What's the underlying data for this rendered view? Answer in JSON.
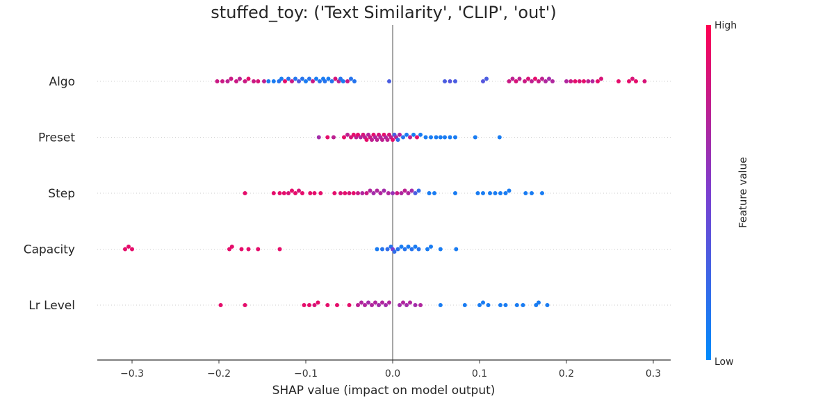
{
  "chart_data": {
    "type": "scatter",
    "title": "stuffed_toy: ('Text Similarity', 'CLIP', 'out')",
    "xlabel": "SHAP value (impact on model output)",
    "xlim": [
      -0.34,
      0.32
    ],
    "xticks": [
      -0.3,
      -0.2,
      -0.1,
      0.0,
      0.1,
      0.2,
      0.3
    ],
    "xtick_labels": [
      "−0.3",
      "−0.2",
      "−0.1",
      "0.0",
      "0.1",
      "0.2",
      "0.3"
    ],
    "zero_line": 0.0,
    "colorbar": {
      "title": "Feature value",
      "high_label": "High",
      "low_label": "Low",
      "low_color": "#008bfb",
      "mid_color": "#7b3fd0",
      "high_color": "#ff0052"
    },
    "features": [
      {
        "name": "Algo",
        "points": [
          {
            "shap": -0.202,
            "v": 0.8
          },
          {
            "shap": -0.196,
            "v": 0.8
          },
          {
            "shap": -0.19,
            "v": 0.75
          },
          {
            "shap": -0.186,
            "v": 0.8
          },
          {
            "shap": -0.18,
            "v": 0.8
          },
          {
            "shap": -0.176,
            "v": 0.75
          },
          {
            "shap": -0.17,
            "v": 0.8
          },
          {
            "shap": -0.166,
            "v": 0.9
          },
          {
            "shap": -0.16,
            "v": 0.8
          },
          {
            "shap": -0.155,
            "v": 0.85
          },
          {
            "shap": -0.148,
            "v": 0.75
          },
          {
            "shap": -0.143,
            "v": 0.1
          },
          {
            "shap": -0.137,
            "v": 0.1
          },
          {
            "shap": -0.131,
            "v": 0.15
          },
          {
            "shap": -0.128,
            "v": 0.1
          },
          {
            "shap": -0.124,
            "v": 0.9
          },
          {
            "shap": -0.12,
            "v": 0.15
          },
          {
            "shap": -0.116,
            "v": 0.8
          },
          {
            "shap": -0.112,
            "v": 0.15
          },
          {
            "shap": -0.108,
            "v": 0.3
          },
          {
            "shap": -0.104,
            "v": 0.15
          },
          {
            "shap": -0.1,
            "v": 0.1
          },
          {
            "shap": -0.096,
            "v": 0.15
          },
          {
            "shap": -0.092,
            "v": 0.8
          },
          {
            "shap": -0.088,
            "v": 0.1
          },
          {
            "shap": -0.084,
            "v": 0.15
          },
          {
            "shap": -0.08,
            "v": 0.1
          },
          {
            "shap": -0.078,
            "v": 0.15
          },
          {
            "shap": -0.074,
            "v": 0.1
          },
          {
            "shap": -0.07,
            "v": 0.15
          },
          {
            "shap": -0.066,
            "v": 0.85
          },
          {
            "shap": -0.062,
            "v": 0.75
          },
          {
            "shap": -0.06,
            "v": 0.15
          },
          {
            "shap": -0.057,
            "v": 0.1
          },
          {
            "shap": -0.052,
            "v": 0.8
          },
          {
            "shap": -0.048,
            "v": 0.15
          },
          {
            "shap": -0.044,
            "v": 0.15
          },
          {
            "shap": -0.004,
            "v": 0.3
          },
          {
            "shap": 0.06,
            "v": 0.3
          },
          {
            "shap": 0.066,
            "v": 0.35
          },
          {
            "shap": 0.072,
            "v": 0.3
          },
          {
            "shap": 0.104,
            "v": 0.35
          },
          {
            "shap": 0.108,
            "v": 0.3
          },
          {
            "shap": 0.134,
            "v": 0.8
          },
          {
            "shap": 0.138,
            "v": 0.75
          },
          {
            "shap": 0.142,
            "v": 0.85
          },
          {
            "shap": 0.146,
            "v": 0.75
          },
          {
            "shap": 0.152,
            "v": 0.8
          },
          {
            "shap": 0.156,
            "v": 0.85
          },
          {
            "shap": 0.16,
            "v": 0.75
          },
          {
            "shap": 0.164,
            "v": 0.9
          },
          {
            "shap": 0.168,
            "v": 0.8
          },
          {
            "shap": 0.172,
            "v": 0.75
          },
          {
            "shap": 0.176,
            "v": 0.7
          },
          {
            "shap": 0.18,
            "v": 0.65
          },
          {
            "shap": 0.184,
            "v": 0.7
          },
          {
            "shap": 0.2,
            "v": 0.7
          },
          {
            "shap": 0.205,
            "v": 0.8
          },
          {
            "shap": 0.21,
            "v": 0.9
          },
          {
            "shap": 0.215,
            "v": 0.85
          },
          {
            "shap": 0.22,
            "v": 0.9
          },
          {
            "shap": 0.225,
            "v": 0.75
          },
          {
            "shap": 0.23,
            "v": 0.7
          },
          {
            "shap": 0.236,
            "v": 0.9
          },
          {
            "shap": 0.24,
            "v": 0.85
          },
          {
            "shap": 0.26,
            "v": 0.9
          },
          {
            "shap": 0.272,
            "v": 0.9
          },
          {
            "shap": 0.276,
            "v": 0.85
          },
          {
            "shap": 0.28,
            "v": 0.9
          },
          {
            "shap": 0.29,
            "v": 0.85
          }
        ]
      },
      {
        "name": "Preset",
        "points": [
          {
            "shap": -0.085,
            "v": 0.65
          },
          {
            "shap": -0.075,
            "v": 0.9
          },
          {
            "shap": -0.068,
            "v": 0.75
          },
          {
            "shap": -0.056,
            "v": 0.9
          },
          {
            "shap": -0.052,
            "v": 0.75
          },
          {
            "shap": -0.048,
            "v": 0.85
          },
          {
            "shap": -0.045,
            "v": 0.9
          },
          {
            "shap": -0.042,
            "v": 0.75
          },
          {
            "shap": -0.04,
            "v": 0.9
          },
          {
            "shap": -0.037,
            "v": 0.7
          },
          {
            "shap": -0.034,
            "v": 0.85
          },
          {
            "shap": -0.032,
            "v": 0.75
          },
          {
            "shap": -0.03,
            "v": 0.9
          },
          {
            "shap": -0.028,
            "v": 0.7
          },
          {
            "shap": -0.026,
            "v": 0.8
          },
          {
            "shap": -0.024,
            "v": 0.75
          },
          {
            "shap": -0.022,
            "v": 0.9
          },
          {
            "shap": -0.02,
            "v": 0.7
          },
          {
            "shap": -0.018,
            "v": 0.75
          },
          {
            "shap": -0.016,
            "v": 0.85
          },
          {
            "shap": -0.014,
            "v": 0.7
          },
          {
            "shap": -0.012,
            "v": 0.75
          },
          {
            "shap": -0.01,
            "v": 0.9
          },
          {
            "shap": -0.008,
            "v": 0.7
          },
          {
            "shap": -0.006,
            "v": 0.75
          },
          {
            "shap": -0.004,
            "v": 0.85
          },
          {
            "shap": -0.002,
            "v": 0.75
          },
          {
            "shap": 0.0,
            "v": 0.9
          },
          {
            "shap": 0.002,
            "v": 0.3
          },
          {
            "shap": 0.004,
            "v": 0.7
          },
          {
            "shap": 0.006,
            "v": 0.2
          },
          {
            "shap": 0.008,
            "v": 0.7
          },
          {
            "shap": 0.012,
            "v": 0.15
          },
          {
            "shap": 0.016,
            "v": 0.1
          },
          {
            "shap": 0.02,
            "v": 0.75
          },
          {
            "shap": 0.024,
            "v": 0.1
          },
          {
            "shap": 0.028,
            "v": 0.9
          },
          {
            "shap": 0.032,
            "v": 0.1
          },
          {
            "shap": 0.038,
            "v": 0.1
          },
          {
            "shap": 0.044,
            "v": 0.1
          },
          {
            "shap": 0.05,
            "v": 0.1
          },
          {
            "shap": 0.055,
            "v": 0.1
          },
          {
            "shap": 0.06,
            "v": 0.1
          },
          {
            "shap": 0.066,
            "v": 0.1
          },
          {
            "shap": 0.072,
            "v": 0.1
          },
          {
            "shap": 0.095,
            "v": 0.1
          },
          {
            "shap": 0.123,
            "v": 0.1
          }
        ]
      },
      {
        "name": "Step",
        "points": [
          {
            "shap": -0.17,
            "v": 0.9
          },
          {
            "shap": -0.137,
            "v": 0.9
          },
          {
            "shap": -0.13,
            "v": 0.9
          },
          {
            "shap": -0.125,
            "v": 0.9
          },
          {
            "shap": -0.12,
            "v": 0.85
          },
          {
            "shap": -0.116,
            "v": 0.9
          },
          {
            "shap": -0.112,
            "v": 0.9
          },
          {
            "shap": -0.108,
            "v": 0.85
          },
          {
            "shap": -0.104,
            "v": 0.9
          },
          {
            "shap": -0.095,
            "v": 0.9
          },
          {
            "shap": -0.09,
            "v": 0.9
          },
          {
            "shap": -0.083,
            "v": 0.9
          },
          {
            "shap": -0.067,
            "v": 0.9
          },
          {
            "shap": -0.06,
            "v": 0.85
          },
          {
            "shap": -0.055,
            "v": 0.9
          },
          {
            "shap": -0.05,
            "v": 0.85
          },
          {
            "shap": -0.045,
            "v": 0.9
          },
          {
            "shap": -0.04,
            "v": 0.8
          },
          {
            "shap": -0.035,
            "v": 0.7
          },
          {
            "shap": -0.03,
            "v": 0.8
          },
          {
            "shap": -0.026,
            "v": 0.7
          },
          {
            "shap": -0.022,
            "v": 0.65
          },
          {
            "shap": -0.018,
            "v": 0.7
          },
          {
            "shap": -0.014,
            "v": 0.7
          },
          {
            "shap": -0.01,
            "v": 0.65
          },
          {
            "shap": -0.005,
            "v": 0.7
          },
          {
            "shap": 0.0,
            "v": 0.6
          },
          {
            "shap": 0.005,
            "v": 0.8
          },
          {
            "shap": 0.01,
            "v": 0.7
          },
          {
            "shap": 0.014,
            "v": 0.75
          },
          {
            "shap": 0.018,
            "v": 0.7
          },
          {
            "shap": 0.022,
            "v": 0.65
          },
          {
            "shap": 0.026,
            "v": 0.3
          },
          {
            "shap": 0.03,
            "v": 0.2
          },
          {
            "shap": 0.042,
            "v": 0.1
          },
          {
            "shap": 0.048,
            "v": 0.1
          },
          {
            "shap": 0.072,
            "v": 0.1
          },
          {
            "shap": 0.098,
            "v": 0.1
          },
          {
            "shap": 0.104,
            "v": 0.1
          },
          {
            "shap": 0.112,
            "v": 0.1
          },
          {
            "shap": 0.118,
            "v": 0.1
          },
          {
            "shap": 0.124,
            "v": 0.1
          },
          {
            "shap": 0.13,
            "v": 0.1
          },
          {
            "shap": 0.134,
            "v": 0.1
          },
          {
            "shap": 0.153,
            "v": 0.1
          },
          {
            "shap": 0.16,
            "v": 0.1
          },
          {
            "shap": 0.172,
            "v": 0.1
          }
        ]
      },
      {
        "name": "Capacity",
        "points": [
          {
            "shap": -0.308,
            "v": 0.9
          },
          {
            "shap": -0.304,
            "v": 0.9
          },
          {
            "shap": -0.3,
            "v": 0.9
          },
          {
            "shap": -0.188,
            "v": 0.9
          },
          {
            "shap": -0.185,
            "v": 0.9
          },
          {
            "shap": -0.174,
            "v": 0.9
          },
          {
            "shap": -0.166,
            "v": 0.9
          },
          {
            "shap": -0.155,
            "v": 0.9
          },
          {
            "shap": -0.13,
            "v": 0.9
          },
          {
            "shap": -0.018,
            "v": 0.1
          },
          {
            "shap": -0.012,
            "v": 0.15
          },
          {
            "shap": -0.006,
            "v": 0.2
          },
          {
            "shap": -0.002,
            "v": 0.15
          },
          {
            "shap": 0.0,
            "v": 0.5
          },
          {
            "shap": 0.002,
            "v": 0.2
          },
          {
            "shap": 0.006,
            "v": 0.15
          },
          {
            "shap": 0.01,
            "v": 0.1
          },
          {
            "shap": 0.014,
            "v": 0.15
          },
          {
            "shap": 0.018,
            "v": 0.1
          },
          {
            "shap": 0.022,
            "v": 0.15
          },
          {
            "shap": 0.026,
            "v": 0.1
          },
          {
            "shap": 0.03,
            "v": 0.15
          },
          {
            "shap": 0.04,
            "v": 0.1
          },
          {
            "shap": 0.044,
            "v": 0.1
          },
          {
            "shap": 0.055,
            "v": 0.1
          },
          {
            "shap": 0.073,
            "v": 0.1
          }
        ]
      },
      {
        "name": "Lr Level",
        "points": [
          {
            "shap": -0.198,
            "v": 0.9
          },
          {
            "shap": -0.17,
            "v": 0.9
          },
          {
            "shap": -0.102,
            "v": 0.9
          },
          {
            "shap": -0.096,
            "v": 0.9
          },
          {
            "shap": -0.09,
            "v": 0.85
          },
          {
            "shap": -0.086,
            "v": 0.9
          },
          {
            "shap": -0.075,
            "v": 0.9
          },
          {
            "shap": -0.064,
            "v": 0.9
          },
          {
            "shap": -0.05,
            "v": 0.9
          },
          {
            "shap": -0.04,
            "v": 0.75
          },
          {
            "shap": -0.036,
            "v": 0.7
          },
          {
            "shap": -0.032,
            "v": 0.7
          },
          {
            "shap": -0.028,
            "v": 0.65
          },
          {
            "shap": -0.024,
            "v": 0.7
          },
          {
            "shap": -0.02,
            "v": 0.7
          },
          {
            "shap": -0.016,
            "v": 0.65
          },
          {
            "shap": -0.012,
            "v": 0.7
          },
          {
            "shap": -0.008,
            "v": 0.65
          },
          {
            "shap": -0.004,
            "v": 0.7
          },
          {
            "shap": 0.008,
            "v": 0.65
          },
          {
            "shap": 0.012,
            "v": 0.7
          },
          {
            "shap": 0.016,
            "v": 0.65
          },
          {
            "shap": 0.02,
            "v": 0.7
          },
          {
            "shap": 0.026,
            "v": 0.65
          },
          {
            "shap": 0.032,
            "v": 0.7
          },
          {
            "shap": 0.055,
            "v": 0.1
          },
          {
            "shap": 0.083,
            "v": 0.1
          },
          {
            "shap": 0.1,
            "v": 0.1
          },
          {
            "shap": 0.104,
            "v": 0.1
          },
          {
            "shap": 0.11,
            "v": 0.1
          },
          {
            "shap": 0.124,
            "v": 0.1
          },
          {
            "shap": 0.13,
            "v": 0.1
          },
          {
            "shap": 0.143,
            "v": 0.1
          },
          {
            "shap": 0.15,
            "v": 0.1
          },
          {
            "shap": 0.165,
            "v": 0.1
          },
          {
            "shap": 0.168,
            "v": 0.1
          },
          {
            "shap": 0.178,
            "v": 0.1
          }
        ]
      }
    ]
  }
}
